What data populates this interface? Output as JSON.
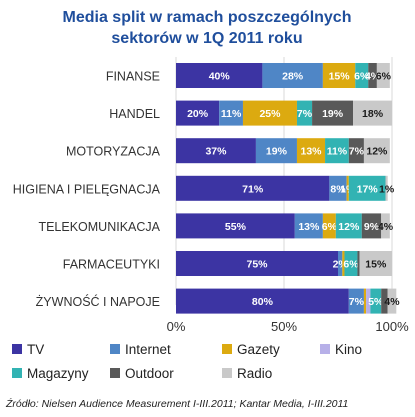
{
  "chart_data": {
    "type": "bar",
    "orientation": "horizontal",
    "stacked": true,
    "title": [
      "Media split w ramach poszczególnych",
      "sektorów w 1Q 2011 roku"
    ],
    "categories": [
      "FINANSE",
      "HANDEL",
      "MOTORYZACJA",
      "HIGIENA I PIELĘGNACJA",
      "TELEKOMUNIKACJA",
      "FARMACEUTYKI",
      "ŻYWNOŚĆ I NAPOJE"
    ],
    "series": [
      {
        "name": "TV",
        "color": "#3c34a3",
        "values": [
          40,
          20,
          37,
          71,
          55,
          75,
          80
        ],
        "labels": [
          "40%",
          "20%",
          "37%",
          "71%",
          "55%",
          "75%",
          "80%"
        ]
      },
      {
        "name": "Internet",
        "color": "#4f86c6",
        "values": [
          28,
          11,
          19,
          8,
          13,
          2,
          7
        ],
        "labels": [
          "28%",
          "11%",
          "19%",
          "8%",
          "13%",
          "2%",
          "7%"
        ]
      },
      {
        "name": "Gazety",
        "color": "#dcaa10",
        "values": [
          15,
          25,
          13,
          1,
          6,
          1,
          1
        ],
        "labels": [
          "15%",
          "25%",
          "13%",
          "1%",
          "6%",
          "",
          ""
        ]
      },
      {
        "name": "Kino",
        "color": "#b7b0e8",
        "values": [
          0,
          0,
          0,
          0,
          0,
          0,
          2
        ],
        "labels": [
          "",
          "",
          "",
          "",
          "",
          "",
          ""
        ]
      },
      {
        "name": "Magazyny",
        "color": "#32b3b3",
        "values": [
          6,
          7,
          11,
          17,
          12,
          6,
          5
        ],
        "labels": [
          "6%",
          "7%",
          "11%",
          "17%",
          "12%",
          "6%",
          "5%"
        ]
      },
      {
        "name": "Outdoor",
        "color": "#595959",
        "values": [
          4,
          19,
          7,
          0,
          9,
          1,
          3
        ],
        "labels": [
          "4%",
          "19%",
          "7%",
          "",
          "9%",
          "",
          ""
        ]
      },
      {
        "name": "Radio",
        "color": "#c9c9c9",
        "values": [
          6,
          18,
          12,
          1,
          4,
          15,
          4
        ],
        "labels": [
          "6%",
          "18%",
          "12%",
          "1%",
          "4%",
          "15%",
          "4%"
        ]
      }
    ],
    "x_ticks": [
      "0%",
      "50%",
      "100%"
    ],
    "xlim": [
      0,
      100
    ],
    "grid": true,
    "legend": "bottom"
  },
  "source_note": "Źródło: Nielsen Audience Measurement I-III.2011; Kantar Media, I-III.2011"
}
